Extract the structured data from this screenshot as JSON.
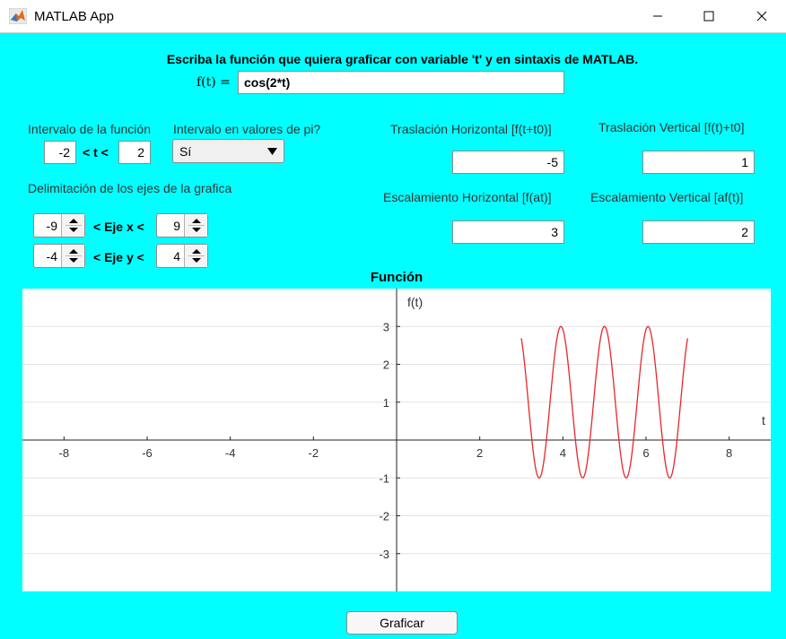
{
  "window": {
    "title": "MATLAB App"
  },
  "instruction": "Escriba la función que quiera graficar con variable 't' y en sintaxis de MATLAB.",
  "function": {
    "label": "f(t) =",
    "value": "cos(2*t)"
  },
  "interval": {
    "label": "Intervalo de la función",
    "min": "-2",
    "max": "2",
    "separator": "< t <"
  },
  "pi_option": {
    "label": "Intervalo en valores de pi?",
    "selected": "Sí"
  },
  "axes_limits": {
    "label": "Delimitación de los ejes de la grafica",
    "x_min": "-9",
    "x_max": "9",
    "x_label": "< Eje x <",
    "y_min": "-4",
    "y_max": "4",
    "y_label": "< Eje y <"
  },
  "transforms": {
    "h_shift": {
      "label": "Traslación Horizontal [f(t+t0)]",
      "value": "-5"
    },
    "v_shift": {
      "label": "Traslación Vertical [f(t)+t0]",
      "value": "1"
    },
    "h_scale": {
      "label": "Escalamiento Horizontal [f(at)]",
      "value": "3"
    },
    "v_scale": {
      "label": "Escalamiento Vertical [af(t)]",
      "value": "2"
    }
  },
  "graph_button": "Graficar",
  "chart_data": {
    "type": "line",
    "title": "Función",
    "xlabel": "t",
    "ylabel": "f(t)",
    "xlim": [
      -9,
      9
    ],
    "ylim": [
      -4,
      4
    ],
    "xticks": [
      -8,
      -6,
      -4,
      -2,
      2,
      4,
      6,
      8
    ],
    "yticks": [
      -3,
      -2,
      -1,
      1,
      2,
      3
    ],
    "grid": true,
    "series": [
      {
        "color": "#e8262b",
        "x_range": [
          3,
          7
        ],
        "formula": "1 + 2*cos(6*(t-5))"
      }
    ]
  }
}
